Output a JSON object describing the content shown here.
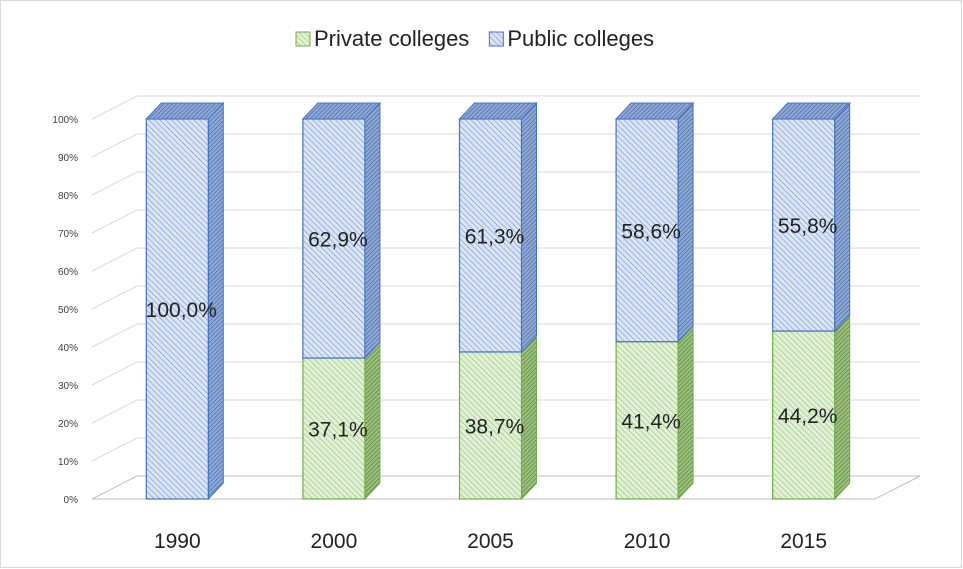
{
  "chart_data": {
    "type": "bar",
    "stacked": true,
    "three_d": true,
    "categories": [
      "1990",
      "2000",
      "2005",
      "2010",
      "2015"
    ],
    "series": [
      {
        "name": "Private colleges",
        "values": [
          0,
          37.1,
          38.7,
          41.4,
          44.2
        ],
        "labels": [
          "",
          "37,1%",
          "38,7%",
          "41,4%",
          "44,2%"
        ],
        "color": "#70ad47"
      },
      {
        "name": "Public colleges",
        "values": [
          100,
          62.9,
          61.3,
          58.6,
          55.8
        ],
        "labels": [
          "100,0%",
          "62,9%",
          "61,3%",
          "58,6%",
          "55,8%"
        ],
        "color": "#4472c4"
      }
    ],
    "yticks": [
      "0%",
      "10%",
      "20%",
      "30%",
      "40%",
      "50%",
      "60%",
      "70%",
      "80%",
      "90%",
      "100%"
    ],
    "ylim": [
      0,
      100
    ],
    "grid": true,
    "legend_position": "top"
  }
}
